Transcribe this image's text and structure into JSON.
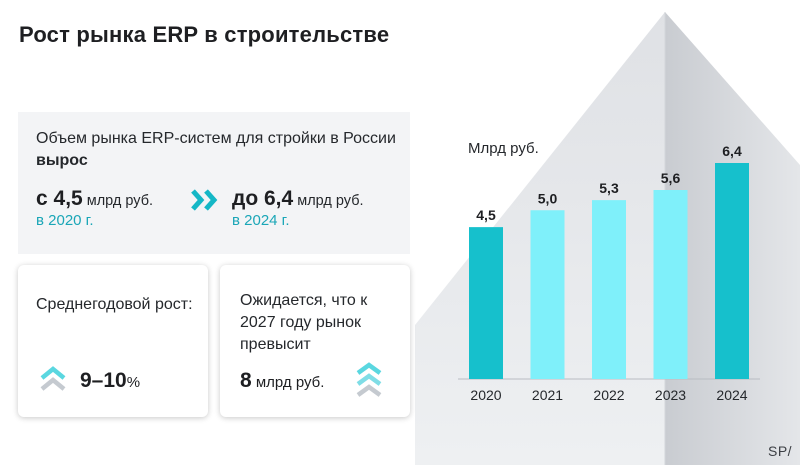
{
  "title": "Рост рынка ERP в строительстве",
  "market": {
    "text_before": "Объем рынка ERP-систем для стройки в России ",
    "text_bold": "вырос",
    "from_prefix": "с ",
    "from_value": "4,5",
    "from_unit": " млрд руб.",
    "from_year": "в 2020 г.",
    "to_prefix": "до ",
    "to_value": "6,4",
    "to_unit": " млрд руб.",
    "to_year": "в 2024 г."
  },
  "growth_card": {
    "label": "Среднегодовой рост:",
    "value": "9–10",
    "suffix": "%"
  },
  "forecast_card": {
    "label": "Ожидается, что к 2027 году рынок превысит",
    "value": "8",
    "suffix": " млрд руб."
  },
  "logo_text": "SP/",
  "colors": {
    "accent": "#16c0cc",
    "light_bar": "#7ff0fa",
    "arrow": "#15b7c6",
    "teal_text": "#1aa6b7"
  },
  "chart_data": {
    "type": "bar",
    "title": "",
    "ylabel": "Млрд руб.",
    "xlabel": "",
    "categories": [
      "2020",
      "2021",
      "2022",
      "2023",
      "2024"
    ],
    "values": [
      4.5,
      5.0,
      5.3,
      5.6,
      6.4
    ],
    "value_labels": [
      "4,5",
      "5,0",
      "5,3",
      "5,6",
      "6,4"
    ],
    "highlighted": [
      "2020",
      "2024"
    ],
    "ylim": [
      0,
      6.4
    ]
  }
}
